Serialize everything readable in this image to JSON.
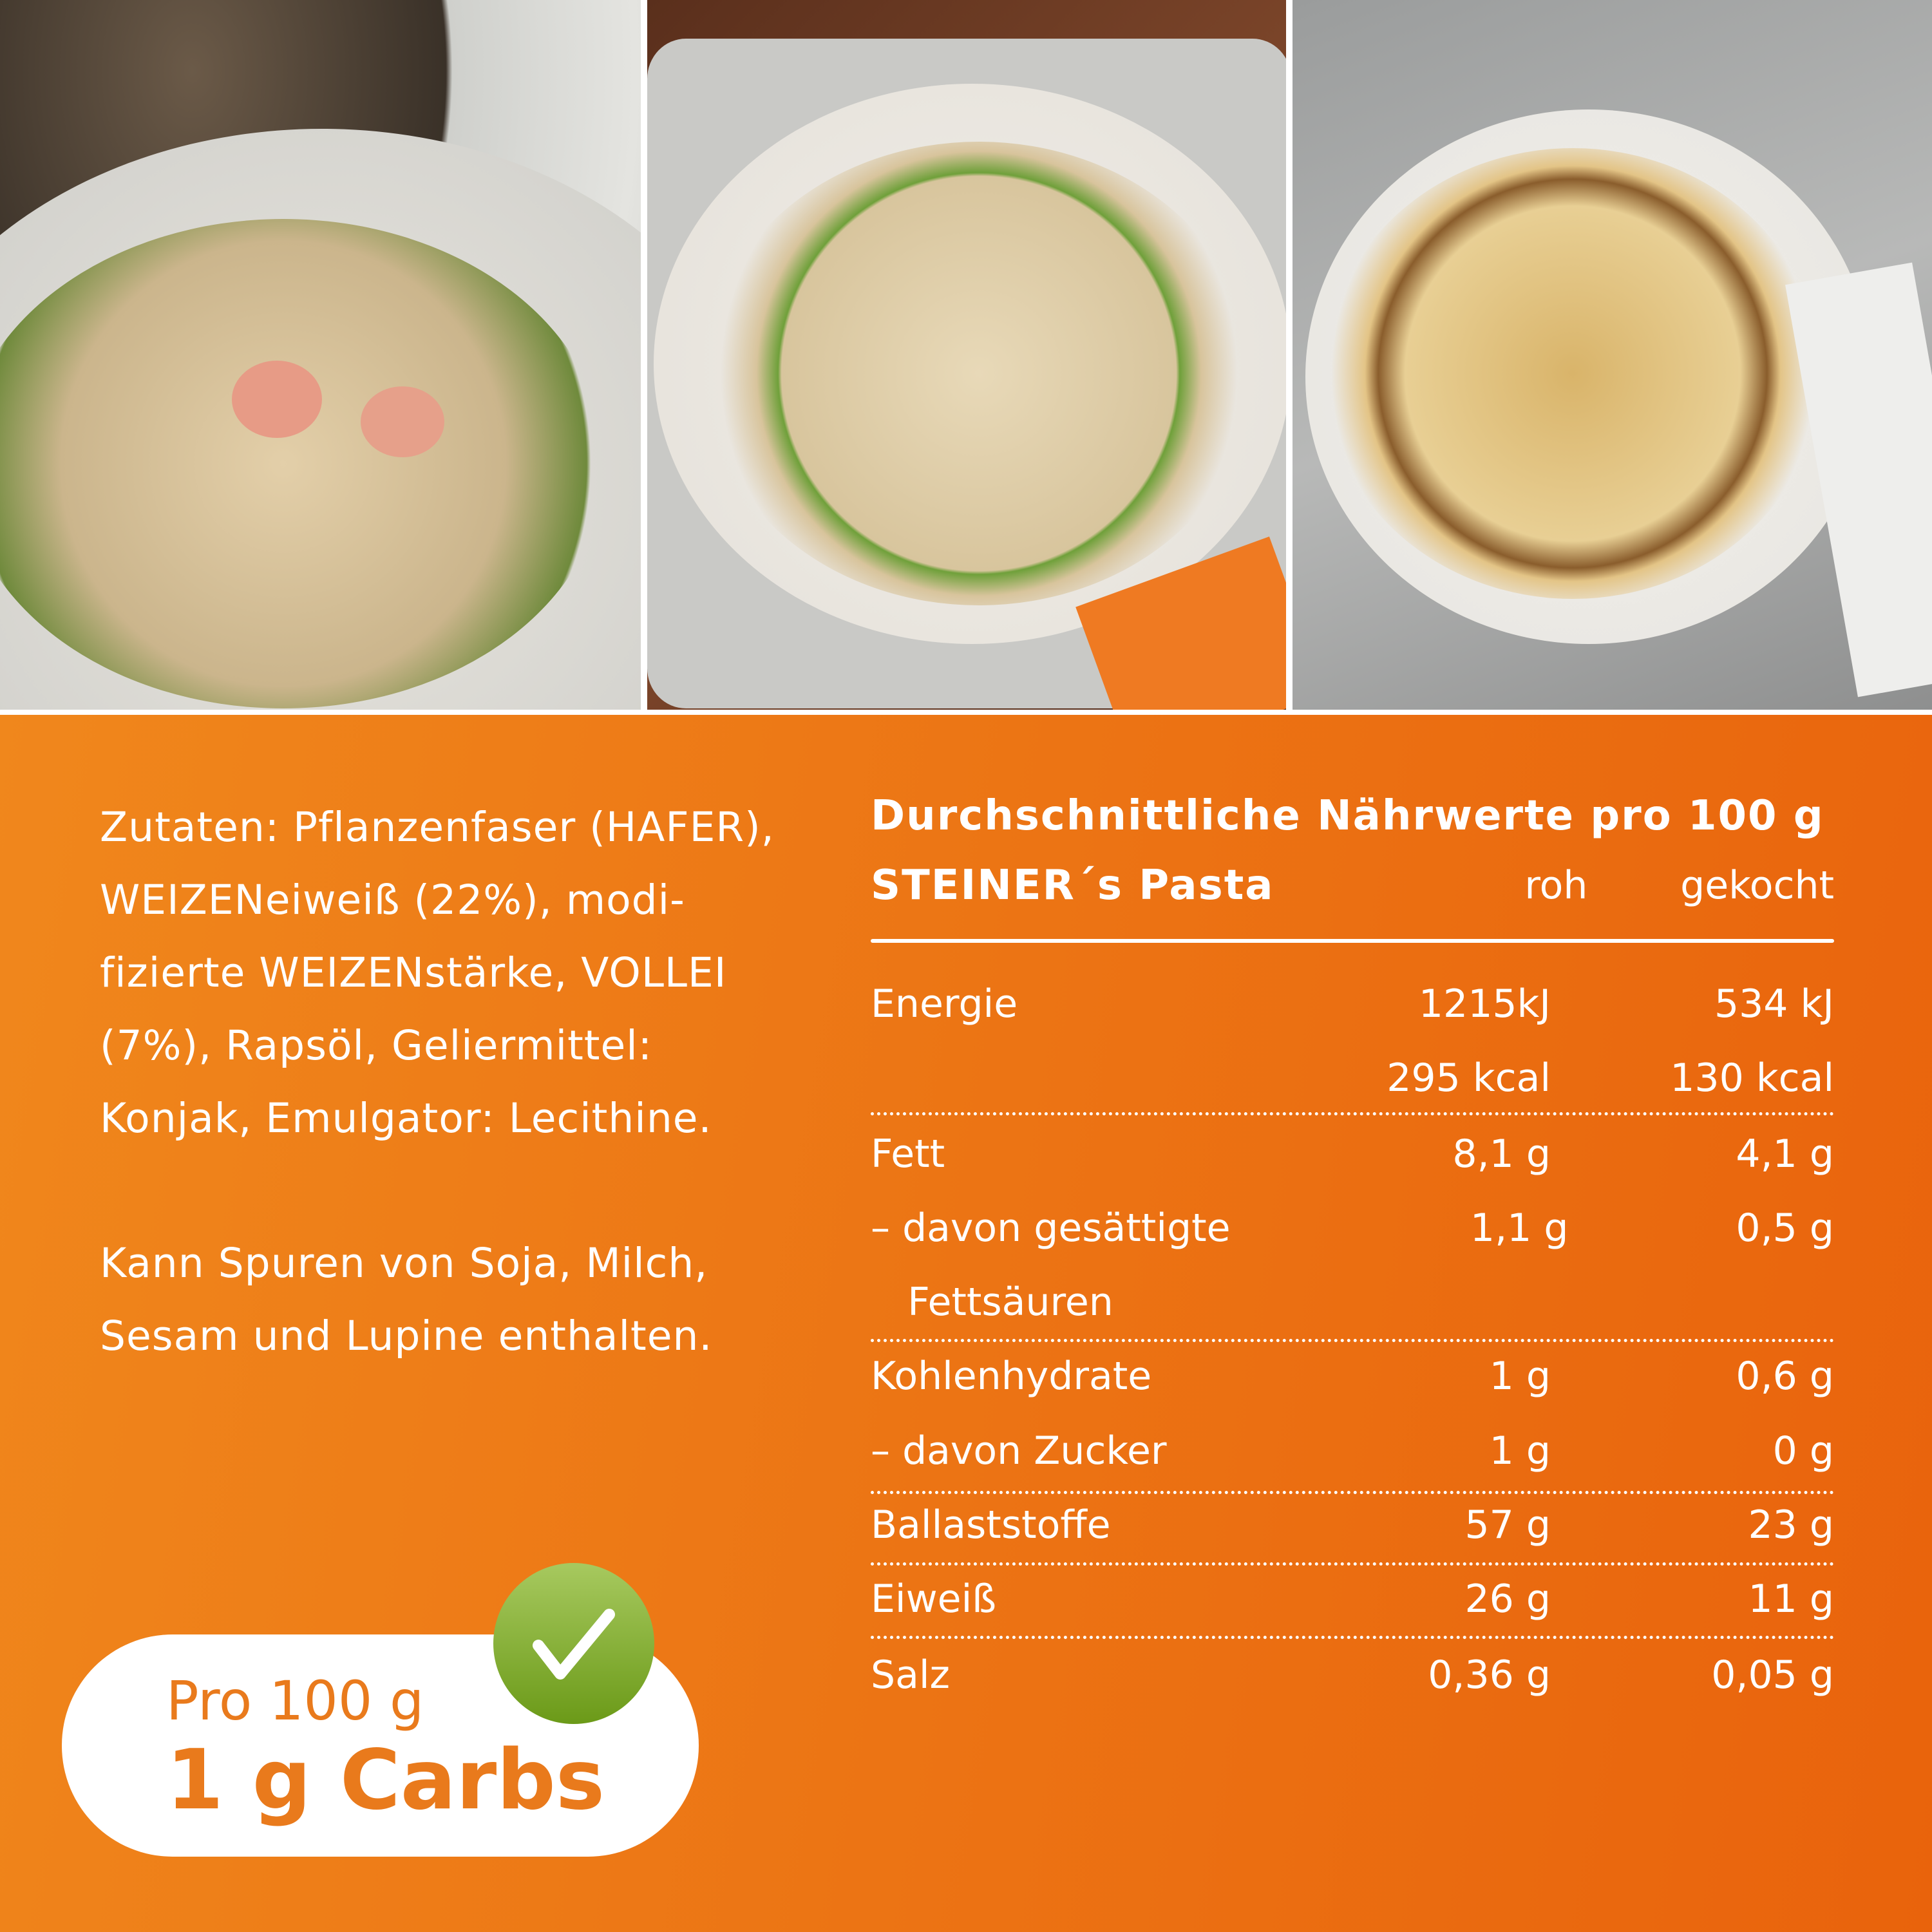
{
  "photos": [
    {
      "icon": "salmon-tagliatelle-photo"
    },
    {
      "icon": "rigatoni-peas-photo"
    },
    {
      "icon": "kaesespaetzle-photo"
    }
  ],
  "ingredients": "Zutaten: Pflanzenfaser (HAFER), WEIZENeiweiß (22%), modi-fizierte WEIZENstärke, VOLLEI (7%), Rapsöl, Geliermittel: Konjak, Emulgator: Lecithine.",
  "allergy": "Kann Spuren von Soja, Milch, Sesam und Lupine enthalten.",
  "table": {
    "title": "Durchschnittliche Nährwerte pro 100 g",
    "product": "STEINER´s Pasta",
    "col_raw": "roh",
    "col_cooked": "gekocht",
    "rows": [
      {
        "label": "Energie",
        "raw": "1215kJ",
        "cooked": "534 kJ"
      },
      {
        "label": "",
        "raw": "295 kcal",
        "cooked": "130 kcal"
      },
      {
        "label": "Fett",
        "raw": "8,1 g",
        "cooked": "4,1 g"
      },
      {
        "label": "– davon gesättigte",
        "raw": "1,1 g",
        "cooked": "0,5 g"
      },
      {
        "label": "   Fettsäuren",
        "raw": "",
        "cooked": ""
      },
      {
        "label": "Kohlenhydrate",
        "raw": "1 g",
        "cooked": "0,6 g"
      },
      {
        "label": "– davon Zucker",
        "raw": "1 g",
        "cooked": "0 g"
      },
      {
        "label": "Ballaststoffe",
        "raw": "57 g",
        "cooked": "23 g"
      },
      {
        "label": "Eiweiß",
        "raw": "26 g",
        "cooked": "11 g"
      },
      {
        "label": "Salz",
        "raw": "0,36 g",
        "cooked": "0,05 g"
      }
    ]
  },
  "badge": {
    "line1": "Pro 100 g",
    "line2": "1 g Carbs",
    "icon": "checkmark-icon"
  },
  "colors": {
    "orange_left": "#f0871c",
    "orange_right": "#e9630c",
    "badge_text": "#e97a1c",
    "check_green": "#7faa2a"
  }
}
